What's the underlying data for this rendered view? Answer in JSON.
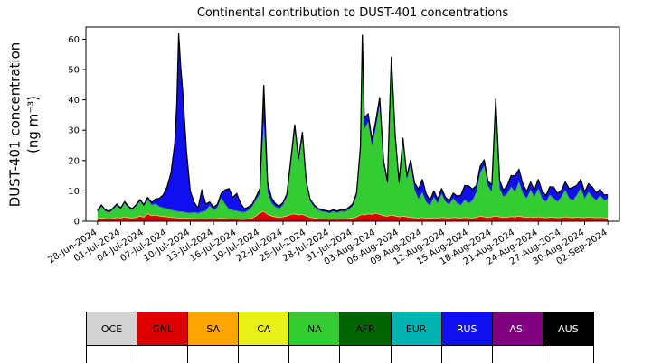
{
  "figure": {
    "background": "#ffffff"
  },
  "chart_data": {
    "type": "area",
    "stacked": true,
    "title": "Continental contribution to DUST-401 concentrations",
    "ylabel_line1": "DUST-401 concentration",
    "ylabel_line2": "(ng m⁻³)",
    "ylim": [
      0,
      64
    ],
    "xlim_days": [
      -1.5,
      67.5
    ],
    "grid": false,
    "yticks": [
      0,
      10,
      20,
      30,
      40,
      50,
      60
    ],
    "xticks": [
      {
        "day": 0,
        "label": "28-Jun-2024"
      },
      {
        "day": 3,
        "label": "01-Jul-2024"
      },
      {
        "day": 6,
        "label": "04-Jul-2024"
      },
      {
        "day": 9,
        "label": "07-Jul-2024"
      },
      {
        "day": 12,
        "label": "10-Jul-2024"
      },
      {
        "day": 15,
        "label": "13-Jul-2024"
      },
      {
        "day": 18,
        "label": "16-Jul-2024"
      },
      {
        "day": 21,
        "label": "19-Jul-2024"
      },
      {
        "day": 24,
        "label": "22-Jul-2024"
      },
      {
        "day": 27,
        "label": "25-Jul-2024"
      },
      {
        "day": 30,
        "label": "28-Jul-2024"
      },
      {
        "day": 33,
        "label": "31-Jul-2024"
      },
      {
        "day": 36,
        "label": "03-Aug-2024"
      },
      {
        "day": 39,
        "label": "06-Aug-2024"
      },
      {
        "day": 42,
        "label": "09-Aug-2024"
      },
      {
        "day": 45,
        "label": "12-Aug-2024"
      },
      {
        "day": 48,
        "label": "15-Aug-2024"
      },
      {
        "day": 51,
        "label": "18-Aug-2024"
      },
      {
        "day": 54,
        "label": "21-Aug-2024"
      },
      {
        "day": 57,
        "label": "24-Aug-2024"
      },
      {
        "day": 60,
        "label": "27-Aug-2024"
      },
      {
        "day": 63,
        "label": "30-Aug-2024"
      },
      {
        "day": 66,
        "label": "02-Sep-2024"
      }
    ],
    "x_days": [
      0,
      0.5,
      1,
      1.5,
      2,
      2.5,
      3,
      3.5,
      4,
      4.5,
      5,
      5.5,
      6,
      6.5,
      7,
      7.5,
      8,
      8.5,
      9,
      9.5,
      10,
      10.25,
      10.5,
      10.75,
      11,
      11.5,
      12,
      12.5,
      13,
      13.5,
      14,
      14.5,
      15,
      15.5,
      16,
      16.5,
      17,
      17.5,
      18,
      18.5,
      19,
      19.5,
      20,
      20.5,
      21,
      21.5,
      22,
      22.5,
      23,
      23.5,
      24,
      24.5,
      25,
      25.5,
      26,
      26.5,
      27,
      27.5,
      28,
      28.5,
      29,
      29.5,
      30,
      30.5,
      31,
      31.5,
      32,
      32.5,
      33,
      33.5,
      34,
      34.25,
      34.5,
      35,
      35.5,
      36,
      36.5,
      37,
      37.5,
      37.75,
      38,
      38.5,
      39,
      39.5,
      40,
      40.5,
      41,
      41.5,
      42,
      42.5,
      43,
      43.5,
      44,
      44.5,
      45,
      45.5,
      46,
      46.5,
      47,
      47.5,
      48,
      48.5,
      49,
      49.5,
      50,
      50.5,
      51,
      51.5,
      52,
      52.5,
      53,
      53.5,
      54,
      54.5,
      55,
      55.5,
      56,
      56.5,
      57,
      57.5,
      58,
      58.5,
      59,
      59.5,
      60,
      60.5,
      61,
      61.5,
      62,
      62.5,
      63,
      63.5,
      64,
      64.5,
      65,
      65.5,
      66
    ],
    "series": [
      {
        "name": "OCE",
        "color": "#d3d3d3",
        "constant": 0.15
      },
      {
        "name": "GNL",
        "color": "#dd0000",
        "values": [
          0.5,
          0.8,
          0.6,
          0.5,
          0.7,
          1.0,
          0.8,
          1.2,
          0.9,
          0.8,
          1.0,
          1.4,
          1.1,
          2.2,
          1.6,
          1.8,
          1.5,
          1.3,
          1.2,
          1.0,
          0.9,
          0.9,
          0.8,
          0.8,
          0.8,
          0.7,
          0.6,
          0.6,
          0.5,
          0.6,
          0.5,
          0.6,
          0.5,
          0.6,
          0.7,
          0.6,
          0.5,
          0.5,
          0.5,
          0.4,
          0.4,
          0.5,
          0.8,
          1.5,
          2.5,
          3.0,
          2.0,
          1.5,
          1.2,
          1.0,
          1.2,
          1.5,
          2.0,
          2.2,
          1.8,
          2.0,
          1.5,
          1.0,
          0.8,
          0.6,
          0.5,
          0.5,
          0.4,
          0.5,
          0.4,
          0.5,
          0.5,
          0.6,
          0.8,
          1.2,
          1.8,
          2.0,
          1.8,
          2.2,
          2.0,
          2.4,
          2.0,
          1.6,
          1.4,
          1.6,
          1.8,
          1.5,
          1.2,
          1.4,
          1.2,
          1.0,
          0.9,
          0.8,
          1.0,
          0.8,
          0.7,
          0.9,
          0.8,
          1.0,
          0.9,
          0.8,
          1.0,
          0.9,
          0.8,
          1.0,
          0.9,
          0.8,
          1.0,
          1.4,
          1.2,
          1.0,
          1.2,
          1.5,
          1.2,
          1.0,
          1.1,
          1.3,
          1.2,
          1.4,
          1.2,
          1.0,
          1.2,
          1.0,
          1.2,
          1.0,
          0.9,
          1.1,
          1.0,
          0.9,
          1.0,
          1.2,
          1.0,
          0.9,
          1.1,
          1.0,
          0.9,
          1.1,
          1.0,
          0.9,
          1.0,
          0.9,
          0.8
        ]
      },
      {
        "name": "SA",
        "color": "#ffa500",
        "constant": 0.1
      },
      {
        "name": "CA",
        "color": "#e8f219",
        "constant": 0.1
      },
      {
        "name": "NA",
        "color": "#33cc33",
        "values": [
          2.0,
          3.5,
          2.2,
          1.8,
          2.6,
          3.6,
          2.6,
          4.2,
          3.0,
          2.4,
          3.4,
          4.6,
          3.3,
          4.4,
          3.2,
          3.4,
          2.8,
          2.6,
          2.4,
          2.2,
          2.0,
          1.9,
          1.8,
          1.8,
          1.8,
          1.6,
          1.6,
          1.8,
          1.6,
          2.0,
          2.4,
          4.0,
          2.6,
          3.4,
          6.5,
          4.5,
          3.0,
          2.6,
          2.4,
          2.2,
          2.0,
          2.6,
          3.4,
          5.0,
          6.0,
          29.0,
          7.0,
          4.0,
          3.0,
          2.6,
          3.6,
          6.0,
          16.0,
          27.0,
          17.0,
          25.0,
          10.0,
          5.0,
          3.4,
          2.6,
          2.2,
          2.0,
          1.8,
          2.2,
          1.9,
          2.3,
          2.1,
          2.8,
          3.6,
          6.5,
          20.0,
          53.0,
          28.0,
          30.0,
          22.0,
          28.0,
          36.0,
          16.0,
          10.0,
          30.0,
          50.0,
          25.0,
          10.0,
          24.0,
          12.0,
          17.0,
          9.0,
          6.0,
          8.0,
          5.0,
          4.0,
          6.5,
          4.5,
          7.5,
          5.0,
          4.2,
          6.0,
          4.6,
          4.0,
          5.5,
          4.5,
          5.5,
          8.0,
          14.0,
          16.5,
          10.0,
          8.0,
          33.0,
          9.0,
          6.5,
          7.5,
          9.5,
          8.0,
          11.0,
          7.5,
          6.0,
          8.5,
          6.5,
          9.0,
          6.0,
          5.0,
          7.0,
          6.0,
          5.0,
          6.5,
          8.5,
          6.0,
          5.5,
          7.0,
          9.5,
          6.0,
          8.0,
          6.5,
          5.5,
          7.0,
          5.5,
          6.0
        ]
      },
      {
        "name": "AFR",
        "color": "#006400",
        "constant": 0.15
      },
      {
        "name": "EUR",
        "color": "#00b3b3",
        "constant": 0.1
      },
      {
        "name": "RUS",
        "color": "#1010ee",
        "values": [
          0.2,
          0.3,
          0.2,
          0.2,
          0.2,
          0.3,
          0.2,
          0.3,
          0.2,
          0.2,
          0.3,
          0.4,
          0.3,
          0.5,
          0.6,
          1.4,
          2.5,
          4.0,
          7.0,
          12.0,
          22.0,
          35.0,
          58.5,
          48.0,
          40.0,
          20.0,
          7.0,
          3.0,
          1.5,
          7.0,
          2.0,
          1.0,
          0.8,
          0.8,
          1.2,
          4.5,
          6.5,
          4.0,
          5.5,
          2.5,
          1.0,
          0.8,
          0.6,
          0.8,
          1.5,
          12.0,
          3.0,
          1.5,
          0.8,
          0.6,
          0.6,
          0.8,
          1.5,
          1.8,
          1.2,
          1.5,
          0.8,
          0.5,
          0.4,
          0.3,
          0.3,
          0.3,
          0.3,
          0.3,
          0.3,
          0.3,
          0.3,
          0.4,
          0.5,
          0.8,
          2.0,
          5.5,
          3.5,
          2.5,
          2.0,
          2.2,
          2.0,
          1.5,
          1.0,
          1.5,
          1.5,
          1.2,
          1.0,
          1.2,
          1.0,
          1.5,
          2.0,
          3.0,
          4.0,
          2.5,
          1.5,
          1.8,
          1.2,
          1.5,
          1.2,
          1.0,
          1.5,
          2.0,
          3.0,
          4.5,
          5.5,
          3.5,
          2.0,
          2.0,
          1.8,
          1.5,
          2.0,
          5.0,
          2.5,
          2.0,
          2.5,
          3.5,
          5.0,
          4.0,
          3.0,
          2.0,
          2.5,
          2.0,
          2.8,
          2.2,
          1.8,
          2.5,
          3.5,
          2.5,
          2.0,
          2.5,
          3.0,
          4.0,
          3.0,
          2.5,
          2.0,
          2.5,
          3.0,
          2.2,
          1.8,
          1.5,
          1.2
        ]
      },
      {
        "name": "ASI",
        "color": "#800080",
        "constant": 0.1
      },
      {
        "name": "AUS",
        "color": "#000000",
        "constant": 0.05
      }
    ],
    "total_line_color": "#000000"
  },
  "legend": {
    "items": [
      {
        "label": "OCE",
        "color": "#d3d3d3",
        "text": "#000000"
      },
      {
        "label": "GNL",
        "color": "#dd0000",
        "text": "#000000"
      },
      {
        "label": "SA",
        "color": "#ffa500",
        "text": "#000000"
      },
      {
        "label": "CA",
        "color": "#e8f219",
        "text": "#000000"
      },
      {
        "label": "NA",
        "color": "#33cc33",
        "text": "#000000"
      },
      {
        "label": "AFR",
        "color": "#006400",
        "text": "#000000"
      },
      {
        "label": "EUR",
        "color": "#00b3b3",
        "text": "#000000"
      },
      {
        "label": "RUS",
        "color": "#1010ee",
        "text": "#ffffff"
      },
      {
        "label": "ASI",
        "color": "#800080",
        "text": "#ffffff"
      },
      {
        "label": "AUS",
        "color": "#000000",
        "text": "#ffffff"
      }
    ]
  }
}
